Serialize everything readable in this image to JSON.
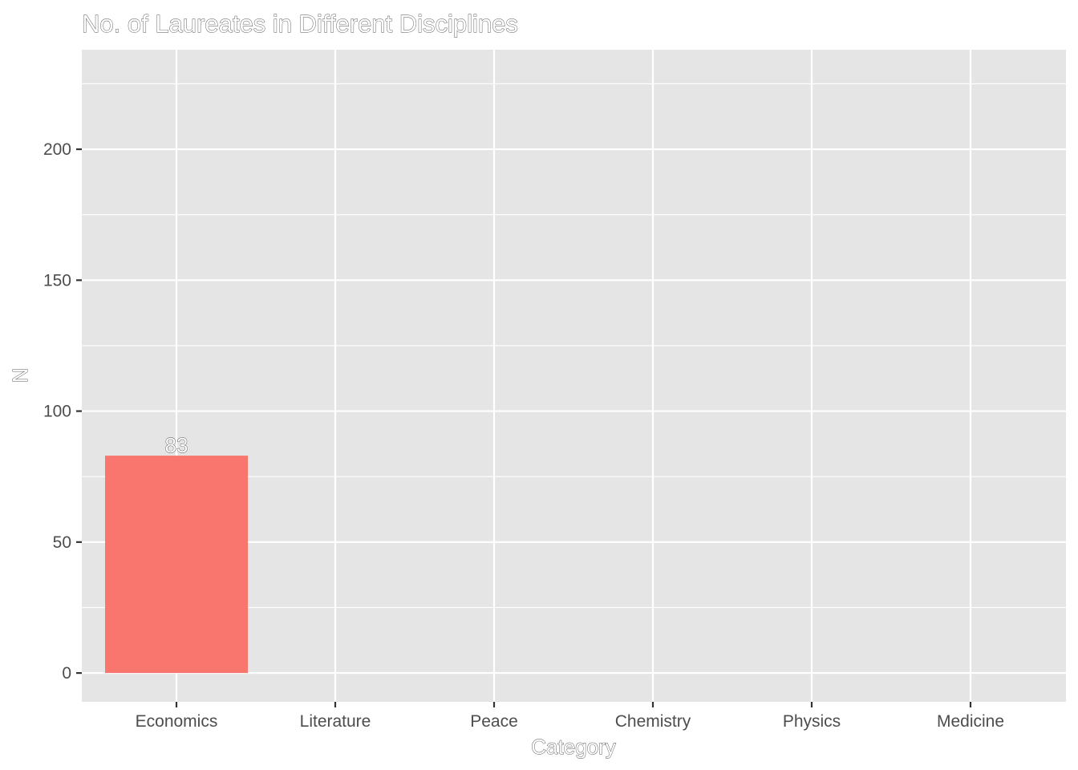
{
  "chart_data": {
    "type": "bar",
    "title": "No. of Laureates in Different Disciplines",
    "xlabel": "Category",
    "ylabel": "N",
    "categories": [
      "Economics",
      "Literature",
      "Peace",
      "Chemistry",
      "Physics",
      "Medicine"
    ],
    "series": [
      {
        "values": [
          83,
          0,
          0,
          0,
          0,
          0
        ]
      }
    ],
    "data_labels": [
      "83",
      "",
      "",
      "",
      "",
      ""
    ],
    "ylim": [
      -11,
      238
    ],
    "yticks": [
      0,
      50,
      100,
      150,
      200
    ],
    "ytick_labels": [
      "0",
      "50",
      "100",
      "150",
      "200"
    ],
    "grid": true,
    "legend": "none",
    "colors": {
      "bar": "#F8766D",
      "panel": "#E5E5E5",
      "grid": "#FFFFFF",
      "text": "#4D4D4D"
    }
  }
}
